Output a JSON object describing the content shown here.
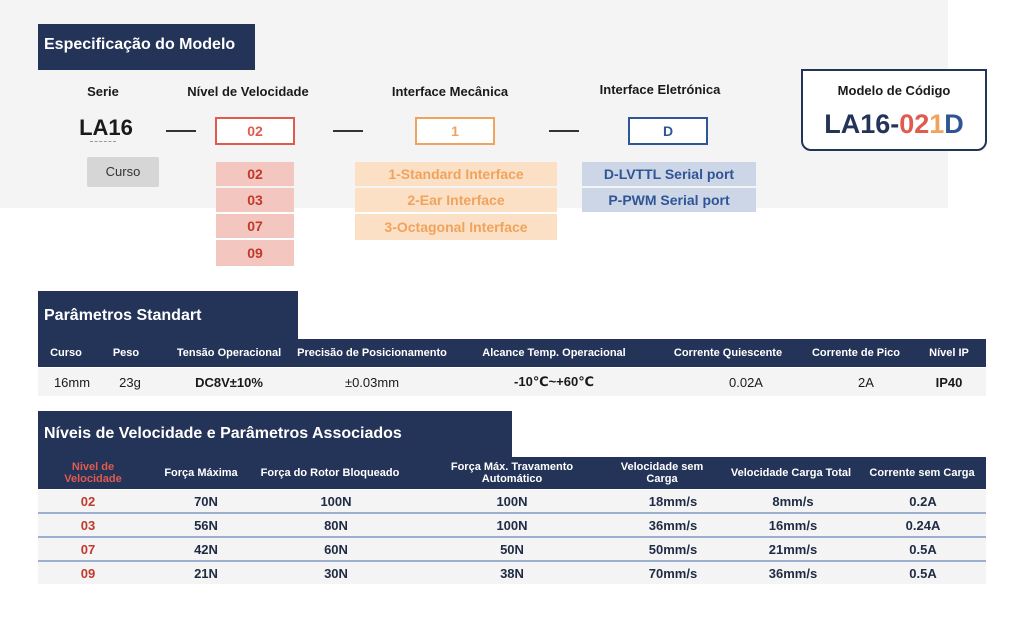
{
  "spec": {
    "section_title": "Especificação do Modelo",
    "columns": {
      "serie": "Serie",
      "speed": "Nível de Velocidade",
      "mech": "Interface Mecânica",
      "elec": "Interface Eletrónica",
      "code": "Modelo de Código"
    },
    "serie_value": "LA16",
    "stroke_label": "Curso",
    "speed_selected": "02",
    "mech_selected": "1",
    "elec_selected": "D",
    "speed_options": [
      "02",
      "03",
      "07",
      "09"
    ],
    "mech_options": [
      "1-Standard Interface",
      "2-Ear Interface",
      "3-Octagonal Interface"
    ],
    "elec_options": [
      "D-LVTTL Serial port",
      "P-PWM Serial port"
    ],
    "code_parts": {
      "prefix": "LA16-",
      "speed": "02",
      "mech": "1",
      "elec": "D"
    },
    "colors": {
      "speed": "#e05a4e",
      "mech": "#f0a35c",
      "elec": "#2f5597",
      "navy": "#243459"
    }
  },
  "standard": {
    "section_title": "Parâmetros Standart",
    "headers": [
      "Curso",
      "Peso",
      "Tensão Operacional",
      "Precisão de Posicionamento",
      "Alcance Temp.  Operacional",
      "Corrente Quiescente",
      "Corrente de Pico",
      "Nível IP"
    ],
    "values": [
      "16mm",
      "23g",
      "DC8V±10%",
      "±0.03mm",
      "-10℃~+60℃",
      "0.02A",
      "2A",
      "IP40"
    ]
  },
  "speed_table": {
    "section_title": "Níveis de Velocidade e Parâmetros Associados",
    "headers": [
      "Nivel de Velocidade",
      "Força Máxima",
      "Força do Rotor Bloqueado",
      "Força Máx. Travamento Automático",
      "Velocidade sem Carga",
      "Velocidade Carga Total",
      "Corrente sem Carga"
    ],
    "rows": [
      [
        "02",
        "70N",
        "100N",
        "100N",
        "18mm/s",
        "8mm/s",
        "0.2A"
      ],
      [
        "03",
        "56N",
        "80N",
        "100N",
        "36mm/s",
        "16mm/s",
        "0.24A"
      ],
      [
        "07",
        "42N",
        "60N",
        "50N",
        "50mm/s",
        "21mm/s",
        "0.5A"
      ],
      [
        "09",
        "21N",
        "30N",
        "38N",
        "70mm/s",
        "36mm/s",
        "0.5A"
      ]
    ]
  }
}
